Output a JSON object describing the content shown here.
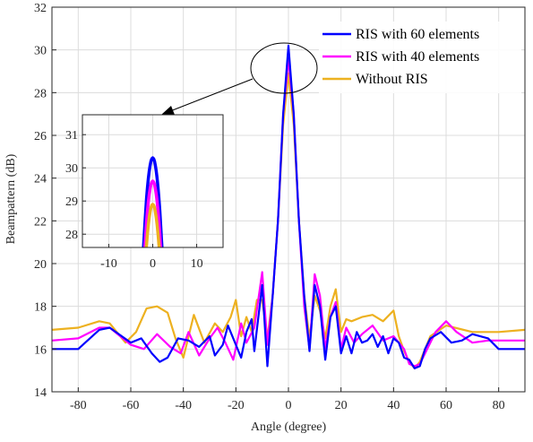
{
  "chart_data": {
    "type": "line",
    "title": "",
    "xlabel": "Angle (degree)",
    "ylabel": "Beampattern (dB)",
    "xlim": [
      -90,
      90
    ],
    "ylim": [
      14,
      32
    ],
    "xticks": [
      -80,
      -60,
      -40,
      -20,
      0,
      20,
      40,
      60,
      80
    ],
    "yticks": [
      14,
      16,
      18,
      20,
      22,
      24,
      26,
      28,
      30,
      32
    ],
    "grid": true,
    "legend_position": "top-right",
    "series": [
      {
        "name": "RIS with 60 elements",
        "color": "#0000ff",
        "x": [
          -90,
          -80,
          -72,
          -68,
          -60,
          -56,
          -52,
          -49,
          -46,
          -42,
          -38,
          -34,
          -30,
          -28,
          -25,
          -23,
          -20,
          -18,
          -16,
          -14,
          -13,
          -10,
          -8,
          -6,
          -4,
          -2,
          0,
          2,
          4,
          6,
          8,
          10,
          12,
          14,
          16,
          18,
          20,
          22,
          24,
          26,
          28,
          30,
          32,
          34,
          36,
          38,
          40,
          42,
          44,
          46,
          48,
          50,
          52,
          54,
          58,
          62,
          66,
          70,
          76,
          80,
          86,
          90
        ],
        "y": [
          16.0,
          16.0,
          16.9,
          17.0,
          16.3,
          16.5,
          15.8,
          15.4,
          15.6,
          16.5,
          16.4,
          16.1,
          16.6,
          15.7,
          16.2,
          17.1,
          16.2,
          15.6,
          16.8,
          17.4,
          15.9,
          19.0,
          15.2,
          18.5,
          22.0,
          27.0,
          30.2,
          27.0,
          22.0,
          18.5,
          15.9,
          19.0,
          18.0,
          15.5,
          17.5,
          18.0,
          15.8,
          16.6,
          15.8,
          16.8,
          16.3,
          16.4,
          16.7,
          16.1,
          16.6,
          15.8,
          16.5,
          16.3,
          15.6,
          15.5,
          15.1,
          15.2,
          16.0,
          16.5,
          16.8,
          16.3,
          16.4,
          16.7,
          16.5,
          16.0,
          16.0,
          16.0
        ]
      },
      {
        "name": "RIS with 40 elements",
        "color": "#ff00ff",
        "x": [
          -90,
          -80,
          -72,
          -68,
          -60,
          -55,
          -50,
          -45,
          -41,
          -38,
          -34,
          -30,
          -27,
          -24,
          -21,
          -18,
          -16,
          -13,
          -10,
          -8,
          -6,
          -4,
          -2,
          0,
          2,
          4,
          6,
          8,
          10,
          12,
          14,
          16,
          18,
          20,
          22,
          25,
          28,
          32,
          36,
          40,
          44,
          46,
          48,
          50,
          52,
          56,
          60,
          64,
          70,
          76,
          82,
          90
        ],
        "y": [
          16.4,
          16.5,
          17.0,
          17.0,
          16.2,
          16.0,
          16.7,
          16.1,
          15.8,
          16.8,
          15.7,
          16.5,
          17.0,
          16.3,
          15.5,
          17.2,
          16.3,
          17.0,
          19.6,
          16.2,
          18.5,
          22.0,
          27.0,
          29.6,
          27.0,
          22.0,
          18.0,
          16.0,
          19.5,
          18.5,
          16.0,
          17.5,
          18.2,
          16.0,
          17.0,
          16.3,
          16.7,
          17.1,
          16.4,
          16.6,
          16.0,
          15.3,
          15.2,
          15.3,
          15.8,
          16.8,
          17.3,
          16.8,
          16.3,
          16.4,
          16.4,
          16.4
        ]
      },
      {
        "name": "Without RIS",
        "color": "#edb120",
        "x": [
          -90,
          -80,
          -72,
          -68,
          -62,
          -58,
          -54,
          -50,
          -46,
          -43,
          -40,
          -36,
          -32,
          -28,
          -25,
          -22,
          -20,
          -18,
          -16,
          -14,
          -12,
          -10,
          -8,
          -6,
          -4,
          -2,
          0,
          2,
          4,
          6,
          8,
          10,
          12,
          14,
          16,
          18,
          20,
          22,
          24,
          28,
          32,
          36,
          40,
          42,
          44,
          46,
          48,
          50,
          54,
          60,
          70,
          80,
          90
        ],
        "y": [
          16.9,
          17.0,
          17.3,
          17.2,
          16.3,
          16.8,
          17.9,
          18.0,
          17.7,
          16.5,
          15.6,
          17.6,
          16.3,
          17.2,
          16.8,
          17.5,
          18.3,
          16.6,
          17.5,
          16.8,
          18.3,
          18.3,
          16.5,
          18.5,
          22.0,
          26.5,
          28.9,
          26.5,
          22.0,
          18.5,
          16.5,
          18.5,
          17.8,
          16.5,
          18.0,
          18.8,
          16.8,
          17.4,
          17.3,
          17.5,
          17.6,
          17.3,
          17.8,
          16.6,
          15.9,
          15.4,
          15.1,
          15.4,
          16.6,
          17.1,
          16.8,
          16.8,
          16.9
        ]
      }
    ],
    "inset": {
      "xlim": [
        -16,
        16
      ],
      "ylim": [
        27.6,
        31.6
      ],
      "xticks": [
        -10,
        0,
        10
      ],
      "yticks": [
        28,
        29,
        30,
        31
      ],
      "series": [
        {
          "color": "#0000ff",
          "peak": 30.3
        },
        {
          "color": "#ff00ff",
          "peak": 29.6
        },
        {
          "color": "#edb120",
          "peak": 28.9
        }
      ]
    }
  }
}
